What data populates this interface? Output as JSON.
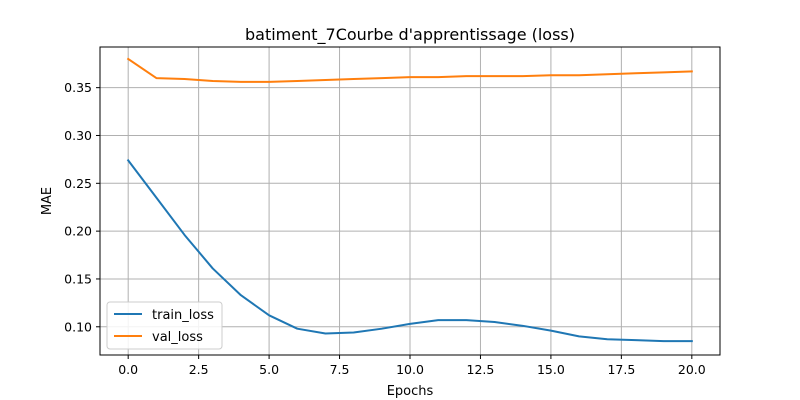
{
  "chart_data": {
    "type": "line",
    "title": "batiment_7Courbe d'apprentissage (loss)",
    "xlabel": "Epochs",
    "ylabel": "MAE",
    "xlim": [
      -1.0,
      21.0
    ],
    "ylim": [
      0.0705,
      0.3925
    ],
    "xticks": [
      0.0,
      2.5,
      5.0,
      7.5,
      10.0,
      12.5,
      15.0,
      17.5,
      20.0
    ],
    "xtick_labels": [
      "0.0",
      "2.5",
      "5.0",
      "7.5",
      "10.0",
      "12.5",
      "15.0",
      "17.5",
      "20.0"
    ],
    "yticks": [
      0.1,
      0.15,
      0.2,
      0.25,
      0.3,
      0.35
    ],
    "ytick_labels": [
      "0.10",
      "0.15",
      "0.20",
      "0.25",
      "0.30",
      "0.35"
    ],
    "grid": true,
    "legend_position": "lower-left",
    "x": [
      0,
      1,
      2,
      3,
      4,
      5,
      6,
      7,
      8,
      9,
      10,
      11,
      12,
      13,
      14,
      15,
      16,
      17,
      18,
      19,
      20
    ],
    "series": [
      {
        "name": "train_loss",
        "color": "#1f77b4",
        "values": [
          0.274,
          0.235,
          0.196,
          0.161,
          0.133,
          0.112,
          0.098,
          0.093,
          0.094,
          0.098,
          0.103,
          0.107,
          0.107,
          0.105,
          0.101,
          0.096,
          0.09,
          0.087,
          0.086,
          0.085,
          0.085
        ]
      },
      {
        "name": "val_loss",
        "color": "#ff7f0e",
        "values": [
          0.38,
          0.36,
          0.359,
          0.357,
          0.356,
          0.356,
          0.357,
          0.358,
          0.359,
          0.36,
          0.361,
          0.361,
          0.362,
          0.362,
          0.362,
          0.363,
          0.363,
          0.364,
          0.365,
          0.366,
          0.367
        ]
      }
    ]
  }
}
